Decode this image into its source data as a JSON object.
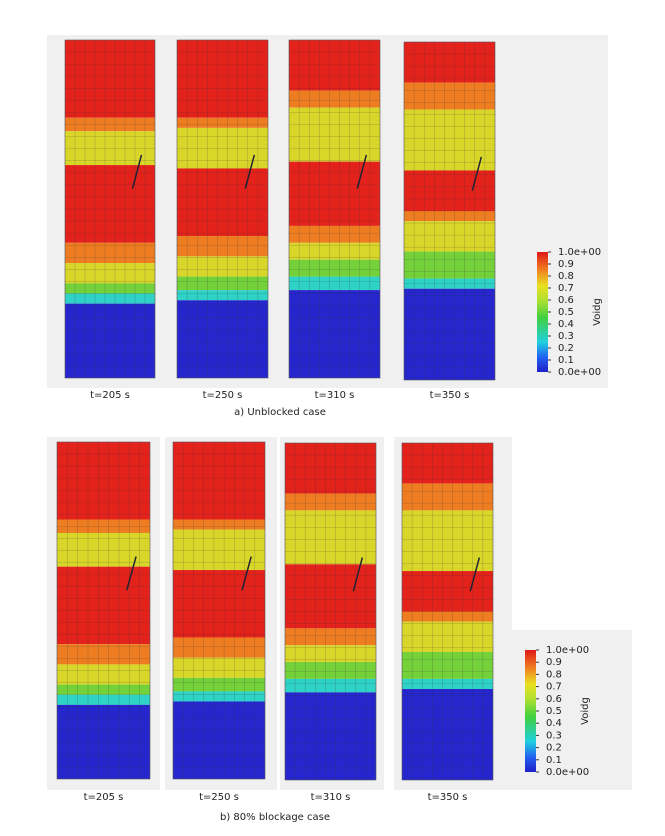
{
  "panels": [
    {
      "caption": "a) Unblocked case",
      "frames": [
        {
          "label": "t=205  s"
        },
        {
          "label": "t=250  s"
        },
        {
          "label": "t=310  s"
        },
        {
          "label": "t=350  s"
        }
      ],
      "colorbar": {
        "title": "Voidg",
        "ticks": [
          {
            "value": 1,
            "label": "1.0e+00"
          },
          0.9,
          0.8,
          0.7,
          0.6,
          0.5,
          0.4,
          0.3,
          0.2,
          0.1,
          {
            "value": 0,
            "label": "0.0e+00"
          }
        ]
      }
    },
    {
      "caption": "b) 80% blockage case",
      "frames": [
        {
          "label": "t=205  s"
        },
        {
          "label": "t=250  s"
        },
        {
          "label": "t=310  s"
        },
        {
          "label": "t=350  s"
        }
      ],
      "colorbar": {
        "title": "Voidg",
        "ticks": [
          {
            "value": 1,
            "label": "1.0e+00"
          },
          0.9,
          0.8,
          0.7,
          0.6,
          0.5,
          0.4,
          0.3,
          0.2,
          0.1,
          {
            "value": 0,
            "label": "0.0e+00"
          }
        ]
      }
    }
  ]
}
